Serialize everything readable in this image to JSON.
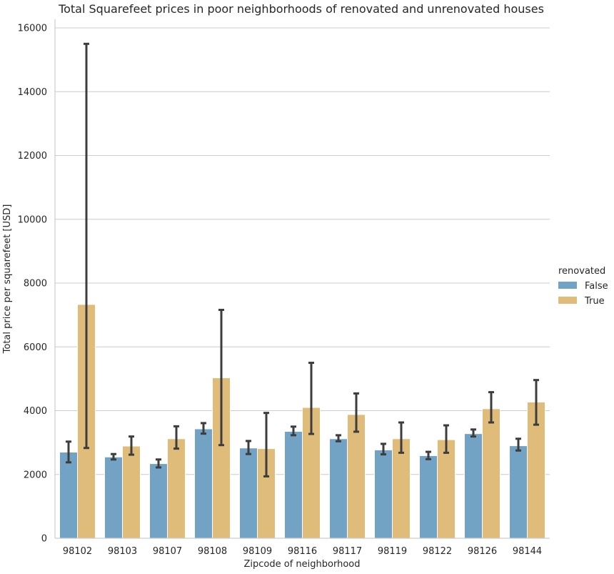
{
  "chart_data": {
    "type": "bar",
    "title": "Total Squarefeet prices in poor neighborhoods of renovated and unrenovated houses",
    "xlabel": "Zipcode of neighborhood",
    "ylabel": "Total price per squarefeet [USD]",
    "ylim": [
      0,
      16000
    ],
    "yticks": [
      0,
      2000,
      4000,
      6000,
      8000,
      10000,
      12000,
      14000,
      16000
    ],
    "grid": "horizontal",
    "legend": {
      "title": "renovated",
      "placement": "right"
    },
    "categories": [
      "98102",
      "98103",
      "98107",
      "98108",
      "98109",
      "98116",
      "98117",
      "98119",
      "98122",
      "98126",
      "98144"
    ],
    "series": [
      {
        "name": "False",
        "color": "#72a3c4",
        "values": [
          2700,
          2550,
          2340,
          3430,
          2830,
          3350,
          3120,
          2770,
          2590,
          3280,
          2900
        ],
        "error_low": [
          2380,
          2470,
          2220,
          3280,
          2640,
          3230,
          3040,
          2630,
          2480,
          3190,
          2750
        ],
        "error_high": [
          3030,
          2640,
          2470,
          3610,
          3050,
          3500,
          3230,
          2960,
          2710,
          3410,
          3120
        ]
      },
      {
        "name": "True",
        "color": "#dfbc7a",
        "values": [
          7330,
          2890,
          3120,
          5030,
          2810,
          4100,
          3880,
          3120,
          3090,
          4060,
          4270
        ],
        "error_low": [
          2830,
          2620,
          2810,
          2920,
          1940,
          3270,
          3340,
          2680,
          2680,
          3630,
          3560
        ],
        "error_high": [
          15500,
          3190,
          3510,
          7160,
          3930,
          5500,
          4540,
          3630,
          3540,
          4580,
          4960
        ]
      }
    ]
  }
}
